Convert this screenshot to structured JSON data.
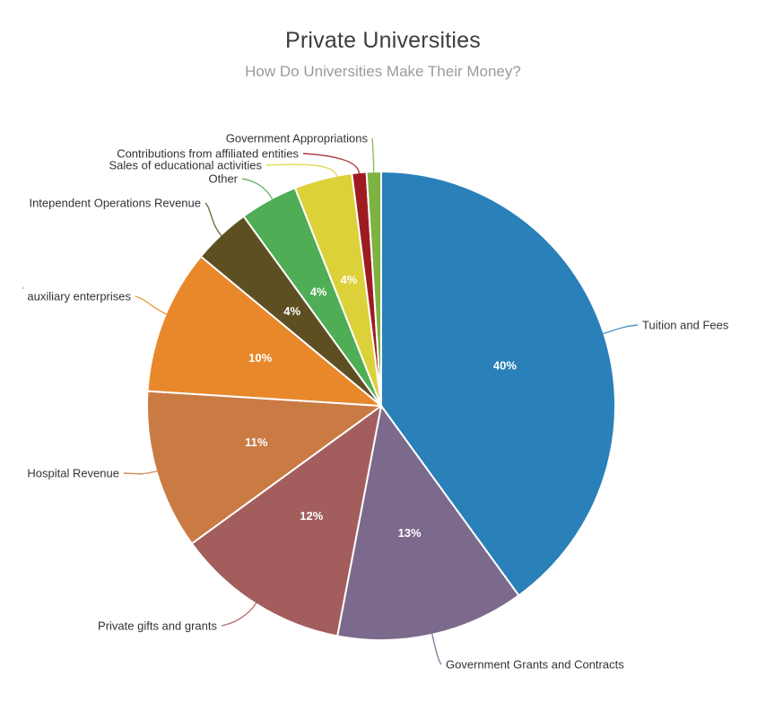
{
  "chart_data": {
    "type": "pie",
    "title": "Private Universities",
    "subtitle": "How Do Universities Make Their Money?",
    "unit": "percent",
    "background": "#FFFFFF",
    "legend": "none",
    "label_style": {
      "text_color": "#333333",
      "percent_color": "#FFFFFF"
    },
    "slices": [
      {
        "label": "Tuition and Fees",
        "value": 40,
        "percent_label": "40%",
        "color": "#2A80B9"
      },
      {
        "label": "Government Grants and Contracts",
        "value": 13,
        "percent_label": "13%",
        "color": "#7C6A8D"
      },
      {
        "label": "Private gifts and grants",
        "value": 12,
        "percent_label": "12%",
        "color": "#A35D5D"
      },
      {
        "label": "Hospital Revenue",
        "value": 11,
        "percent_label": "11%",
        "color": "#CA7A43"
      },
      {
        "label": "auxiliary enterprises",
        "value": 10,
        "percent_label": "10%",
        "color": "#E8882B",
        "clipped_prefix": "'"
      },
      {
        "label": "Intependent Operations Revenue",
        "value": 4,
        "percent_label": "4%",
        "color": "#5E4F23"
      },
      {
        "label": "Other",
        "value": 4,
        "percent_label": "4%",
        "color": "#4EAD55"
      },
      {
        "label": "Sales of educational activities",
        "value": 4,
        "percent_label": "4%",
        "color": "#DCD138"
      },
      {
        "label": "Contributions from affiliated entities",
        "value": 1,
        "percent_label": "",
        "color": "#9E1B21"
      },
      {
        "label": "Government Appropriations",
        "value": 1,
        "percent_label": "",
        "color": "#7DB343"
      }
    ]
  }
}
